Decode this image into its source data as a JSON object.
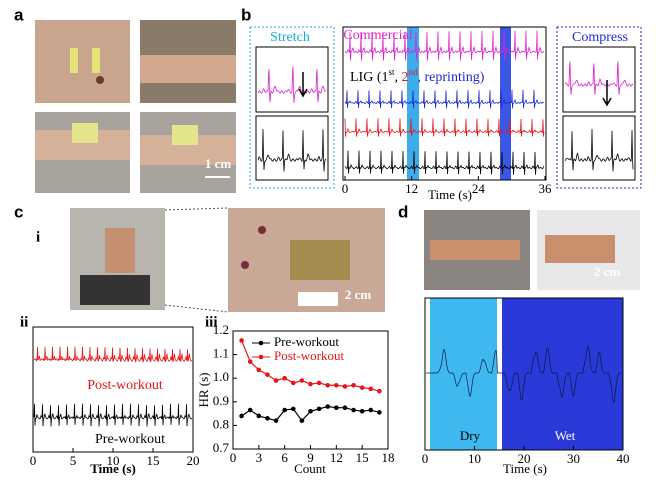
{
  "panel_a": {
    "label": "a",
    "scale": "1 cm"
  },
  "panel_b": {
    "label": "b",
    "stretch": "Stretch",
    "commercial": "Commercial",
    "lig": [
      "LIG (1",
      "st",
      ", ",
      "2",
      "nd",
      ", reprinting)"
    ],
    "compress": "Compress",
    "xlim": [
      0,
      36
    ],
    "xticks": [
      0,
      12,
      24,
      36
    ],
    "xlabel": "Time (s)"
  },
  "panel_c": {
    "label": "c",
    "sub_i": "i",
    "scale": "2 cm",
    "ii": {
      "label": "ii",
      "post": "Post-workout",
      "pre": "Pre-workout",
      "xlim": [
        0,
        20
      ],
      "xticks": [
        0,
        5,
        10,
        15,
        20
      ],
      "xlabel": "Time (s)"
    },
    "iii": {
      "label": "iii",
      "type": "line",
      "x": [
        1,
        2,
        3,
        4,
        5,
        6,
        7,
        8,
        9,
        10,
        11,
        12,
        13,
        14,
        15,
        16,
        17
      ],
      "series": [
        {
          "name": "Pre-workout",
          "color": "#000000",
          "values": [
            0.84,
            0.865,
            0.84,
            0.83,
            0.82,
            0.865,
            0.87,
            0.82,
            0.86,
            0.87,
            0.88,
            0.875,
            0.875,
            0.865,
            0.86,
            0.865,
            0.855
          ]
        },
        {
          "name": "Post-workout",
          "color": "#e8141a",
          "values": [
            1.16,
            1.07,
            1.035,
            1.015,
            0.99,
            1.0,
            0.98,
            0.99,
            0.975,
            0.98,
            0.97,
            0.97,
            0.965,
            0.97,
            0.96,
            0.955,
            0.945
          ]
        }
      ],
      "xlim": [
        0,
        18
      ],
      "xticks": [
        0,
        3,
        6,
        9,
        12,
        15,
        18
      ],
      "ylim": [
        0.7,
        1.2
      ],
      "yticks": [
        0.7,
        0.8,
        0.9,
        {
          "value": 1,
          "label": "1.0"
        },
        1.1,
        1.2
      ],
      "xlabel": "Count",
      "ylabel": "HR (s)"
    }
  },
  "panel_d": {
    "label": "d",
    "scale": "2 cm",
    "dry": "Dry",
    "wet": "Wet",
    "xlim": [
      0,
      40
    ],
    "xticks": [
      0,
      10,
      20,
      30,
      40
    ],
    "xlabel": "Time (s)"
  }
}
